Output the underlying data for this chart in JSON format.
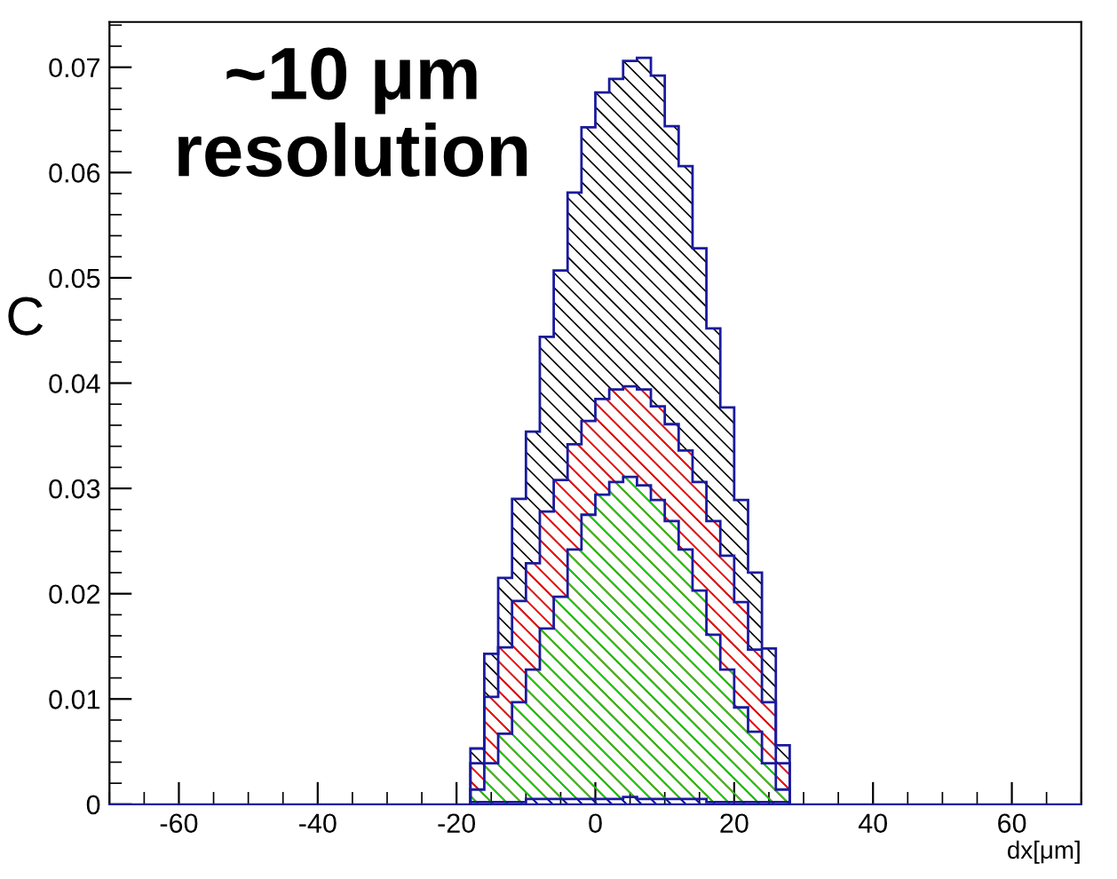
{
  "chart_data": {
    "type": "histogram",
    "xlabel": "dx[μm]",
    "annotations": [
      "~10 μm\nresolution",
      "C"
    ],
    "bins": [
      -18,
      -16,
      -14,
      -12,
      -10,
      -8,
      -6,
      -4,
      -2,
      0,
      2,
      4,
      6,
      8,
      10,
      12,
      14,
      16,
      18,
      20,
      22,
      24,
      26,
      28
    ],
    "series": [
      {
        "color": "#000000",
        "values": [
          0.0053,
          0.0143,
          0.0215,
          0.029,
          0.0354,
          0.0444,
          0.0507,
          0.0581,
          0.0643,
          0.0676,
          0.0689,
          0.0706,
          0.0709,
          0.0692,
          0.0644,
          0.0606,
          0.0528,
          0.0452,
          0.0377,
          0.0289,
          0.022,
          0.0148,
          0.0056
        ]
      },
      {
        "color": "#ff0000",
        "values": [
          0.0039,
          0.0102,
          0.0149,
          0.0193,
          0.0229,
          0.0278,
          0.0308,
          0.0342,
          0.0364,
          0.0385,
          0.0394,
          0.0397,
          0.0394,
          0.0378,
          0.0361,
          0.0336,
          0.0306,
          0.0269,
          0.0236,
          0.0192,
          0.0147,
          0.0097,
          0.0039
        ]
      },
      {
        "color": "#00dd00",
        "values": [
          0.0014,
          0.0039,
          0.0067,
          0.0097,
          0.0128,
          0.0167,
          0.0197,
          0.0242,
          0.0275,
          0.0294,
          0.0306,
          0.0311,
          0.0303,
          0.0289,
          0.0269,
          0.0242,
          0.0203,
          0.0161,
          0.0128,
          0.0092,
          0.0069,
          0.0039,
          0.0014
        ]
      },
      {
        "color": "#0000cc",
        "values": [
          0.0002,
          0.0002,
          0.0002,
          0.0002,
          0.0005,
          0.0005,
          0.0005,
          0.0005,
          0.0005,
          0.0005,
          0.0005,
          0.0007,
          0.0005,
          0.0005,
          0.0005,
          0.0005,
          0.0005,
          0.0002,
          0.0002,
          0.0002,
          0.0002,
          0.0002,
          0.0002
        ]
      }
    ],
    "xlim": [
      -70,
      70
    ],
    "ylim": [
      0,
      0.0743
    ],
    "xticks": [
      -60,
      -40,
      -20,
      0,
      20,
      40,
      60
    ],
    "yticks": [
      0,
      0.01,
      0.02,
      0.03,
      0.04,
      0.05,
      0.06,
      0.07
    ],
    "grid": false,
    "legend": false
  }
}
